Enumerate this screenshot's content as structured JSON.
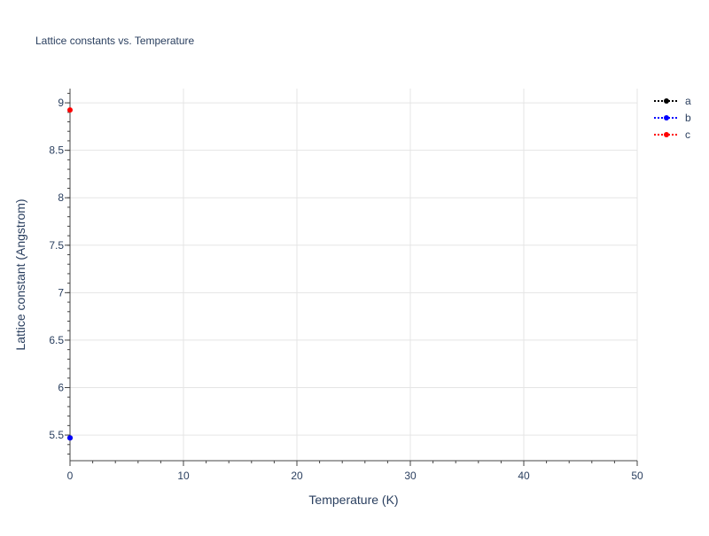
{
  "chart_data": {
    "type": "scatter",
    "title": "Lattice constants vs. Temperature",
    "xlabel": "Temperature (K)",
    "ylabel": "Lattice constant (Angstrom)",
    "xlim": [
      0,
      50
    ],
    "ylim": [
      5.23,
      9.15
    ],
    "xticks": [
      0,
      10,
      20,
      30,
      40,
      50
    ],
    "yticks": [
      5.5,
      6,
      6.5,
      7,
      7.5,
      8,
      8.5,
      9
    ],
    "grid": true,
    "legend_position": "top-right",
    "series": [
      {
        "name": "a",
        "color": "#000000",
        "x": [
          0
        ],
        "y": [
          5.47
        ]
      },
      {
        "name": "b",
        "color": "#0000ff",
        "x": [
          0
        ],
        "y": [
          5.47
        ]
      },
      {
        "name": "c",
        "color": "#ff0000",
        "x": [
          0
        ],
        "y": [
          8.925
        ]
      }
    ]
  }
}
